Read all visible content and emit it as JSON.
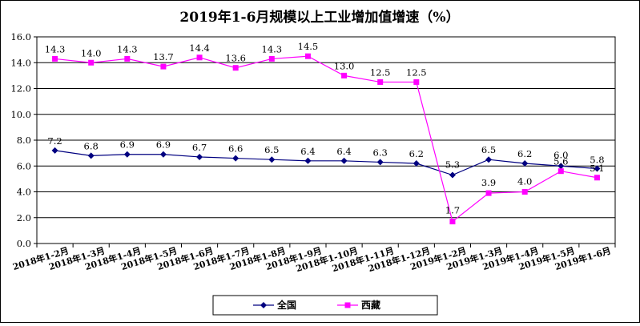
{
  "chart_data": {
    "type": "line",
    "title": "2019年1-6月规模以上工业增加值增速（%）",
    "xlabel": "",
    "ylabel": "",
    "ylim": [
      0,
      16
    ],
    "ytick_step": 2,
    "ytick_labels": [
      "0.0",
      "2.0",
      "4.0",
      "6.0",
      "8.0",
      "10.0",
      "12.0",
      "14.0",
      "16.0"
    ],
    "grid": "horizontal",
    "legend_position": "bottom",
    "categories": [
      "2018年1-2月",
      "2018年1-3月",
      "2018年1-4月",
      "2018年1-5月",
      "2018年1-6月",
      "2018年1-7月",
      "2018年1-8月",
      "2018年1-9月",
      "2018年1-10月",
      "2018年1-11月",
      "2018年1-12月",
      "2019年1-2月",
      "2019年1-3月",
      "2019年1-4月",
      "2019年1-5月",
      "2019年1-6月"
    ],
    "series": [
      {
        "name": "全国",
        "color": "#000080",
        "marker": "diamond",
        "values": [
          7.2,
          6.8,
          6.9,
          6.9,
          6.7,
          6.6,
          6.5,
          6.4,
          6.4,
          6.3,
          6.2,
          5.3,
          6.5,
          6.2,
          6.0,
          5.8
        ],
        "labels": [
          "7.2",
          "6.8",
          "6.9",
          "6.9",
          "6.7",
          "6.6",
          "6.5",
          "6.4",
          "6.4",
          "6.3",
          "6.2",
          "5.3",
          "6.5",
          "6.2",
          "6.0",
          "5.8"
        ]
      },
      {
        "name": "西藏",
        "color": "#ff00ff",
        "marker": "square",
        "values": [
          14.3,
          14.0,
          14.3,
          13.7,
          14.4,
          13.6,
          14.3,
          14.5,
          13.0,
          12.5,
          12.5,
          1.7,
          3.9,
          4.0,
          5.6,
          5.1
        ],
        "labels": [
          "14.3",
          "14.0",
          "14.3",
          "13.7",
          "14.4",
          "13.6",
          "14.3",
          "14.5",
          "13.0",
          "12.5",
          "12.5",
          "1.7",
          "3.9",
          "4.0",
          "5.6",
          "5.1"
        ]
      }
    ]
  }
}
